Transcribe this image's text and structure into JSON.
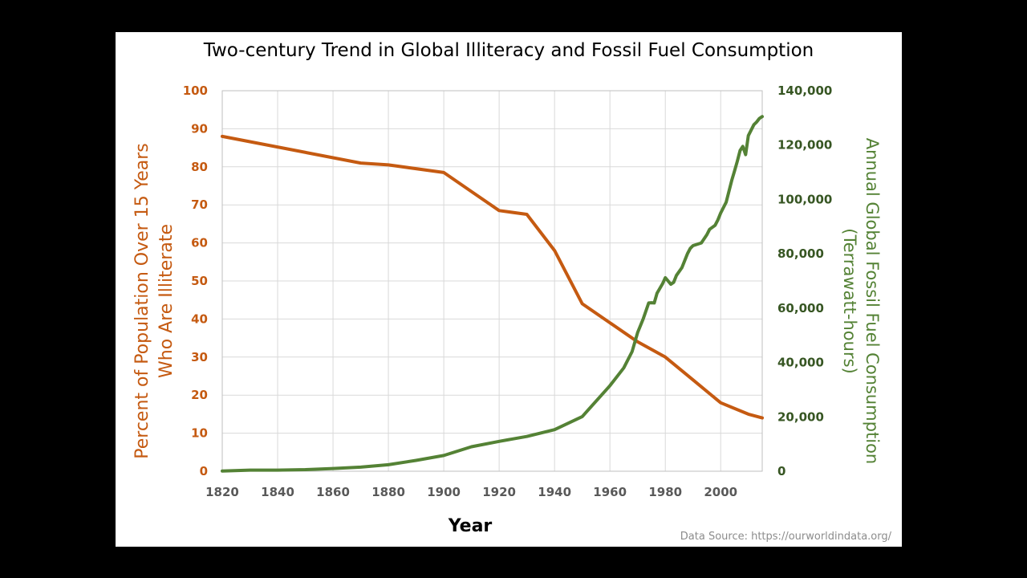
{
  "chart_data": {
    "type": "line",
    "title": "Two-century Trend in Global Illiteracy and Fossil Fuel Consumption",
    "xlabel": "Year",
    "ylabel_left": [
      "Percent of Population Over 15 Years",
      "Who Are Illiterate"
    ],
    "ylabel_right": [
      "Annual Global Fossil Fuel Consumption",
      "(Terrawatt-hours)"
    ],
    "xlim": [
      1820,
      2015
    ],
    "ylim_left": [
      0,
      100
    ],
    "ylim_right": [
      0,
      140000
    ],
    "x_ticks": [
      1820,
      1840,
      1860,
      1880,
      1900,
      1920,
      1940,
      1960,
      1980,
      2000
    ],
    "x_tick_labels": [
      "1820",
      "1840",
      "1860",
      "1880",
      "1900",
      "1920",
      "1940",
      "1960",
      "1980",
      "2000"
    ],
    "y_left_ticks": [
      0,
      10,
      20,
      30,
      40,
      50,
      60,
      70,
      80,
      90,
      100
    ],
    "y_left_tick_labels": [
      "0",
      "10",
      "20",
      "30",
      "40",
      "50",
      "60",
      "70",
      "80",
      "90",
      "100"
    ],
    "y_right_ticks": [
      0,
      20000,
      40000,
      60000,
      80000,
      100000,
      120000,
      140000
    ],
    "y_right_tick_labels": [
      "0",
      "20,000",
      "40,000",
      "60,000",
      "80,000",
      "100,000",
      "120,000",
      "140,000"
    ],
    "grid": true,
    "source_note": "Data Source:  https://ourworldindata.org/",
    "series": [
      {
        "axis": "left",
        "color": "#c55a11",
        "points": [
          [
            1820,
            88
          ],
          [
            1870,
            81
          ],
          [
            1880,
            80.5
          ],
          [
            1900,
            78.5
          ],
          [
            1910,
            73.5
          ],
          [
            1920,
            68.5
          ],
          [
            1930,
            67.5
          ],
          [
            1940,
            58
          ],
          [
            1950,
            44
          ],
          [
            1960,
            39
          ],
          [
            1970,
            34
          ],
          [
            1980,
            30
          ],
          [
            1990,
            24
          ],
          [
            2000,
            18
          ],
          [
            2010,
            15
          ],
          [
            2015,
            14
          ]
        ]
      },
      {
        "axis": "right",
        "color": "#548235",
        "points": [
          [
            1820,
            100
          ],
          [
            1830,
            400
          ],
          [
            1840,
            400
          ],
          [
            1850,
            600
          ],
          [
            1860,
            1000
          ],
          [
            1870,
            1500
          ],
          [
            1880,
            2400
          ],
          [
            1890,
            4000
          ],
          [
            1900,
            5800
          ],
          [
            1910,
            9000
          ],
          [
            1920,
            11000
          ],
          [
            1930,
            12800
          ],
          [
            1940,
            15300
          ],
          [
            1950,
            20100
          ],
          [
            1960,
            31500
          ],
          [
            1965,
            38000
          ],
          [
            1968,
            44000
          ],
          [
            1970,
            51000
          ],
          [
            1972,
            56000
          ],
          [
            1974,
            61900
          ],
          [
            1975,
            62000
          ],
          [
            1976,
            61900
          ],
          [
            1977,
            65500
          ],
          [
            1979,
            69000
          ],
          [
            1980,
            71200
          ],
          [
            1981,
            70000
          ],
          [
            1982,
            68800
          ],
          [
            1983,
            69500
          ],
          [
            1984,
            72000
          ],
          [
            1986,
            74900
          ],
          [
            1988,
            80000
          ],
          [
            1989,
            82000
          ],
          [
            1990,
            83000
          ],
          [
            1993,
            84000
          ],
          [
            1995,
            87000
          ],
          [
            1996,
            89000
          ],
          [
            1998,
            90500
          ],
          [
            1999,
            92500
          ],
          [
            2000,
            95000
          ],
          [
            2002,
            99000
          ],
          [
            2004,
            107000
          ],
          [
            2005,
            110500
          ],
          [
            2006,
            114000
          ],
          [
            2007,
            118000
          ],
          [
            2008,
            119500
          ],
          [
            2009,
            116500
          ],
          [
            2010,
            123500
          ],
          [
            2011,
            125500
          ],
          [
            2012,
            127500
          ],
          [
            2013,
            128500
          ],
          [
            2014,
            129800
          ],
          [
            2015,
            130500
          ]
        ]
      }
    ]
  }
}
